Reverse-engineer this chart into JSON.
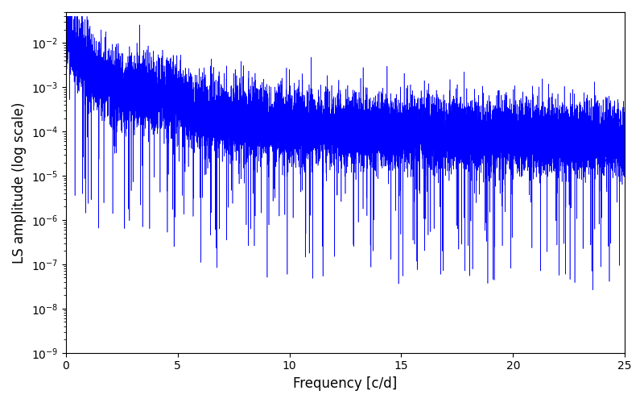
{
  "title": "",
  "xlabel": "Frequency [c/d]",
  "ylabel": "LS amplitude (log scale)",
  "xlim": [
    0,
    25
  ],
  "ylim": [
    1e-09,
    0.05
  ],
  "line_color": "#0000ff",
  "line_width": 0.4,
  "freq_max": 25.0,
  "n_points": 15000,
  "seed": 77,
  "background_color": "#ffffff",
  "figsize": [
    8.0,
    5.0
  ],
  "dpi": 100
}
